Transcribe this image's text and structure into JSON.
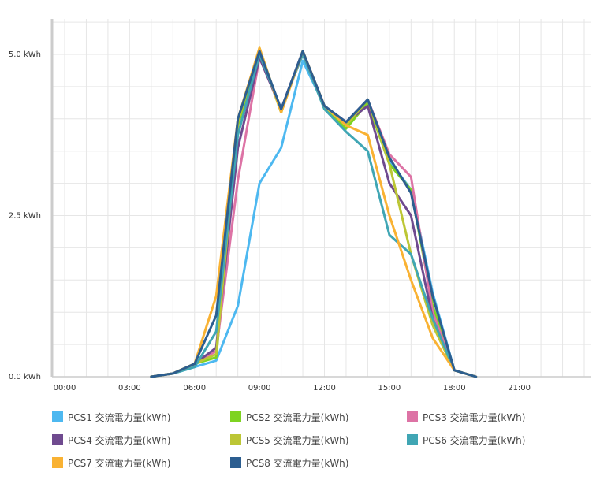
{
  "chart_data": {
    "type": "line",
    "x_labels": [
      "00:00",
      "03:00",
      "06:00",
      "09:00",
      "12:00",
      "15:00",
      "18:00",
      "21:00"
    ],
    "x_range": [
      0,
      24
    ],
    "y_labels": [
      "0.0 kWh",
      "2.5 kWh",
      "5.0 kWh"
    ],
    "y_ticks": [
      0,
      2.5,
      5.0
    ],
    "y_range": [
      0,
      5.0
    ],
    "grid": true,
    "legend_position": "bottom",
    "x": [
      4,
      5,
      6,
      7,
      8,
      9,
      10,
      11,
      12,
      13,
      14,
      15,
      16,
      17,
      18,
      19
    ],
    "series": [
      {
        "name": "PCS1 交流電力量(kWh)",
        "color": "#4db8f0",
        "values": [
          0,
          0.05,
          0.15,
          0.25,
          1.1,
          3.0,
          3.55,
          4.9,
          4.2,
          3.95,
          4.3,
          3.35,
          2.9,
          1.3,
          0.1,
          0
        ]
      },
      {
        "name": "PCS2 交流電力量(kWh)",
        "color": "#7ed321",
        "values": [
          0,
          0.05,
          0.2,
          0.3,
          3.9,
          5.05,
          4.1,
          5.05,
          4.15,
          3.85,
          4.25,
          3.3,
          2.9,
          1.1,
          0.1,
          0
        ]
      },
      {
        "name": "PCS3 交流電力量(kWh)",
        "color": "#dd73a5",
        "values": [
          0,
          0.05,
          0.2,
          0.4,
          3.05,
          4.95,
          4.15,
          5.05,
          4.2,
          3.95,
          4.3,
          3.45,
          3.1,
          1.0,
          0.1,
          0
        ]
      },
      {
        "name": "PCS4 交流電力量(kWh)",
        "color": "#6f4a8f",
        "values": [
          0,
          0.05,
          0.2,
          0.45,
          3.55,
          4.95,
          4.15,
          5.05,
          4.2,
          3.95,
          4.2,
          3.0,
          2.5,
          0.9,
          0.1,
          0
        ]
      },
      {
        "name": "PCS5 交流電力量(kWh)",
        "color": "#bcc635",
        "values": [
          0,
          0.05,
          0.2,
          0.35,
          3.95,
          5.1,
          4.1,
          5.05,
          4.2,
          3.9,
          4.3,
          3.3,
          1.9,
          0.8,
          0.1,
          0
        ]
      },
      {
        "name": "PCS6 交流電力量(kWh)",
        "color": "#40a6b4",
        "values": [
          0,
          0.05,
          0.15,
          0.7,
          3.75,
          5.0,
          4.15,
          5.0,
          4.15,
          3.8,
          3.5,
          2.2,
          1.9,
          0.9,
          0.1,
          0
        ]
      },
      {
        "name": "PCS7 交流電力量(kWh)",
        "color": "#f9b233",
        "values": [
          0,
          0.05,
          0.2,
          1.25,
          4.0,
          5.1,
          4.1,
          5.05,
          4.2,
          3.9,
          3.75,
          2.5,
          1.5,
          0.6,
          0.1,
          0
        ]
      },
      {
        "name": "PCS8 交流電力量(kWh)",
        "color": "#2c5e90",
        "values": [
          0,
          0.05,
          0.2,
          0.95,
          4.0,
          5.05,
          4.15,
          5.05,
          4.2,
          3.95,
          4.3,
          3.4,
          2.85,
          1.25,
          0.1,
          0
        ]
      }
    ]
  }
}
